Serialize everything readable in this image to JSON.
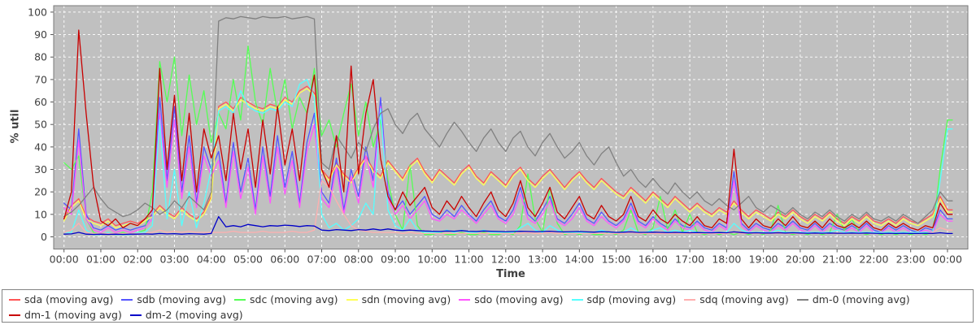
{
  "chart_data": {
    "type": "line",
    "xlabel": "Time",
    "ylabel": "% util",
    "ylim": [
      0,
      100
    ],
    "y_ticks": [
      0,
      10,
      20,
      30,
      40,
      50,
      60,
      70,
      80,
      90,
      100
    ],
    "x_tick_labels": [
      "00:00",
      "01:00",
      "02:00",
      "03:00",
      "04:00",
      "05:00",
      "06:00",
      "07:00",
      "08:00",
      "09:00",
      "10:00",
      "11:00",
      "12:00",
      "13:00",
      "14:00",
      "15:00",
      "16:00",
      "17:00",
      "18:00",
      "19:00",
      "20:00",
      "21:00",
      "22:00",
      "23:00",
      "00:00"
    ],
    "x_start_hour": 0,
    "x_end_hour": 24,
    "x_step_hours": 0.2,
    "grid": true,
    "legend_position": "bottom",
    "colors": {
      "plot_bg": "#c0c0c0",
      "grid": "#ffffff",
      "plot_border": "#7a7a7a",
      "tick_text": "#404040",
      "legend_text": "#333333",
      "legend_border": "#848484"
    },
    "series": [
      {
        "name": "sda (moving avg)",
        "color": "#FF5555",
        "values": [
          8,
          14,
          17,
          9,
          7,
          6,
          8,
          5,
          6,
          7,
          6,
          8,
          10,
          14,
          11,
          9,
          13,
          10,
          8,
          11,
          18,
          58,
          60,
          57,
          62,
          60,
          58,
          57,
          59,
          58,
          62,
          60,
          65,
          67,
          64,
          30,
          26,
          33,
          28,
          25,
          31,
          36,
          30,
          27,
          34,
          30,
          26,
          32,
          35,
          29,
          25,
          30,
          27,
          24,
          29,
          32,
          27,
          24,
          29,
          26,
          23,
          28,
          31,
          26,
          23,
          27,
          30,
          26,
          22,
          26,
          29,
          25,
          22,
          26,
          23,
          20,
          18,
          22,
          19,
          16,
          20,
          17,
          14,
          18,
          15,
          12,
          15,
          12,
          10,
          13,
          11,
          16,
          12,
          9,
          12,
          10,
          8,
          11,
          9,
          12,
          9,
          7,
          10,
          8,
          11,
          8,
          6,
          9,
          7,
          10,
          7,
          6,
          8,
          6,
          9,
          7,
          6,
          8,
          10,
          18,
          12
        ]
      },
      {
        "name": "sdb (moving avg)",
        "color": "#5555FF",
        "values": [
          15,
          12,
          48,
          10,
          4,
          3,
          5,
          3,
          4,
          3,
          4,
          5,
          10,
          62,
          25,
          58,
          20,
          45,
          15,
          40,
          30,
          38,
          15,
          42,
          20,
          35,
          12,
          40,
          18,
          45,
          22,
          38,
          15,
          42,
          55,
          20,
          15,
          35,
          12,
          30,
          18,
          40,
          25,
          62,
          20,
          12,
          16,
          10,
          14,
          18,
          10,
          8,
          12,
          9,
          14,
          10,
          7,
          12,
          16,
          9,
          7,
          12,
          22,
          10,
          7,
          12,
          18,
          8,
          6,
          10,
          15,
          8,
          6,
          11,
          7,
          5,
          8,
          15,
          7,
          5,
          9,
          6,
          4,
          8,
          5,
          4,
          7,
          4,
          3,
          6,
          4,
          29,
          6,
          3,
          6,
          4,
          3,
          6,
          4,
          7,
          4,
          3,
          6,
          3,
          6,
          4,
          3,
          5,
          3,
          6,
          3,
          2,
          5,
          3,
          5,
          3,
          2,
          4,
          3,
          12,
          8
        ]
      },
      {
        "name": "sdc (moving avg)",
        "color": "#55FF55",
        "values": [
          33,
          30,
          36,
          8,
          2,
          1,
          2,
          1,
          2,
          1,
          2,
          3,
          20,
          78,
          60,
          80,
          45,
          72,
          50,
          65,
          42,
          55,
          48,
          70,
          52,
          85,
          60,
          50,
          75,
          55,
          70,
          48,
          62,
          55,
          75,
          45,
          52,
          40,
          55,
          68,
          45,
          60,
          40,
          52,
          25,
          10,
          3,
          32,
          5,
          1,
          1,
          2,
          1,
          1,
          2,
          1,
          1,
          2,
          1,
          1,
          2,
          1,
          5,
          28,
          8,
          2,
          22,
          6,
          1,
          2,
          1,
          2,
          1,
          1,
          2,
          1,
          3,
          12,
          2,
          1,
          4,
          18,
          3,
          12,
          2,
          10,
          2,
          1,
          2,
          1,
          2,
          1,
          2,
          1,
          2,
          1,
          3,
          14,
          2,
          1,
          2,
          1,
          2,
          1,
          2,
          10,
          3,
          8,
          2,
          1,
          2,
          1,
          2,
          1,
          2,
          1,
          2,
          1,
          2,
          30,
          52
        ]
      },
      {
        "name": "sdn (moving avg)",
        "color": "#FFFF55",
        "values": [
          7,
          13,
          16,
          8,
          6,
          5,
          7,
          4,
          5,
          6,
          5,
          7,
          9,
          13,
          10,
          8,
          12,
          9,
          7,
          10,
          17,
          57,
          59,
          56,
          61,
          59,
          57,
          56,
          58,
          57,
          61,
          59,
          64,
          66,
          63,
          29,
          25,
          32,
          27,
          24,
          30,
          35,
          29,
          26,
          33,
          29,
          25,
          31,
          34,
          28,
          24,
          29,
          26,
          23,
          28,
          31,
          26,
          23,
          28,
          25,
          22,
          27,
          30,
          25,
          22,
          26,
          29,
          25,
          21,
          25,
          28,
          24,
          21,
          25,
          22,
          19,
          17,
          21,
          18,
          15,
          19,
          16,
          13,
          17,
          14,
          11,
          14,
          11,
          9,
          12,
          10,
          15,
          11,
          8,
          11,
          9,
          7,
          10,
          8,
          11,
          8,
          6,
          9,
          7,
          10,
          7,
          5,
          8,
          6,
          9,
          6,
          5,
          7,
          5,
          8,
          6,
          5,
          7,
          9,
          17,
          11
        ]
      },
      {
        "name": "sdo (moving avg)",
        "color": "#FF55FF",
        "values": [
          13,
          10,
          43,
          8,
          3,
          2,
          4,
          2,
          3,
          2,
          3,
          4,
          8,
          55,
          22,
          52,
          17,
          40,
          13,
          36,
          27,
          34,
          13,
          38,
          17,
          31,
          10,
          36,
          15,
          40,
          19,
          34,
          13,
          38,
          50,
          17,
          13,
          31,
          10,
          27,
          15,
          36,
          22,
          58,
          17,
          10,
          14,
          8,
          12,
          16,
          8,
          7,
          10,
          8,
          12,
          9,
          6,
          10,
          14,
          8,
          6,
          10,
          19,
          8,
          6,
          10,
          16,
          7,
          5,
          8,
          13,
          7,
          5,
          9,
          6,
          4,
          7,
          13,
          6,
          4,
          8,
          5,
          3,
          7,
          4,
          3,
          6,
          3,
          2,
          5,
          3,
          25,
          5,
          2,
          5,
          3,
          2,
          5,
          3,
          6,
          3,
          2,
          5,
          2,
          5,
          3,
          2,
          4,
          2,
          5,
          2,
          2,
          4,
          2,
          4,
          2,
          2,
          3,
          2,
          10,
          7
        ]
      },
      {
        "name": "sdp (moving avg)",
        "color": "#55FFFF",
        "values": [
          2,
          2,
          12,
          3,
          1,
          1,
          2,
          1,
          1,
          1,
          2,
          2,
          5,
          52,
          8,
          30,
          5,
          20,
          4,
          15,
          30,
          56,
          58,
          55,
          65,
          58,
          56,
          55,
          57,
          56,
          60,
          58,
          68,
          70,
          62,
          10,
          4,
          6,
          3,
          5,
          8,
          15,
          10,
          57,
          12,
          5,
          3,
          8,
          3,
          2,
          2,
          2,
          3,
          2,
          3,
          2,
          2,
          3,
          2,
          2,
          2,
          2,
          4,
          6,
          3,
          2,
          5,
          3,
          2,
          2,
          2,
          2,
          2,
          3,
          2,
          2,
          2,
          4,
          2,
          2,
          3,
          4,
          2,
          3,
          2,
          3,
          2,
          2,
          2,
          2,
          2,
          6,
          3,
          2,
          2,
          2,
          2,
          3,
          2,
          2,
          2,
          2,
          2,
          2,
          2,
          3,
          2,
          2,
          2,
          2,
          2,
          2,
          2,
          2,
          2,
          2,
          2,
          2,
          2,
          25,
          48
        ]
      },
      {
        "name": "sdq (moving avg)",
        "color": "#FFAFAF",
        "values": [
          2,
          3,
          6,
          2,
          1.5,
          1.5,
          1.5,
          1.5,
          1.5,
          1.5,
          1.5,
          1.5,
          2,
          3,
          2,
          2.5,
          2,
          2.5,
          2,
          2,
          2,
          2,
          2,
          2.5,
          2,
          2,
          2,
          2.5,
          2,
          2,
          2,
          2.5,
          2,
          2,
          3,
          25,
          22,
          16,
          10,
          5,
          3,
          2.5,
          2,
          2,
          2,
          2,
          1.5,
          2,
          1.5,
          1.5,
          1.5,
          1.5,
          1.5,
          1.5,
          1.5,
          1.5,
          1.5,
          1.5,
          1.5,
          1.5,
          1.5,
          1.5,
          1.5,
          2,
          1.5,
          1.5,
          2,
          1.5,
          1.5,
          1.5,
          1.5,
          1.5,
          1.5,
          1.5,
          1.5,
          1.5,
          1.5,
          2,
          1.5,
          1.5,
          1.5,
          1.5,
          1.5,
          1.5,
          1.5,
          1.5,
          1.5,
          1.5,
          1.5,
          1.5,
          1.5,
          2,
          1.5,
          1.5,
          1.5,
          1.5,
          1.5,
          1.5,
          1.5,
          1.5,
          1.5,
          1.5,
          1.5,
          1.5,
          1.5,
          1.5,
          1.5,
          1.5,
          1.5,
          1.5,
          1.5,
          1.5,
          1.5,
          1.5,
          1.5,
          1.5,
          1.5,
          1.5,
          2,
          4,
          3
        ]
      },
      {
        "name": "dm-0 (moving avg)",
        "color": "#808080",
        "values": [
          9,
          11,
          14,
          18,
          22,
          17,
          13,
          11,
          9,
          10,
          12,
          15,
          13,
          10,
          12,
          16,
          13,
          18,
          15,
          12,
          20,
          96,
          97.5,
          97,
          98,
          97.5,
          97,
          98,
          97.5,
          97.5,
          98,
          97,
          97.5,
          98,
          97,
          33,
          30,
          45,
          40,
          35,
          42,
          38,
          48,
          55,
          57,
          50,
          46,
          52,
          55,
          48,
          44,
          40,
          46,
          51,
          47,
          42,
          38,
          44,
          48,
          42,
          38,
          44,
          47,
          40,
          36,
          42,
          46,
          40,
          35,
          38,
          42,
          36,
          32,
          37,
          40,
          33,
          27,
          30,
          25,
          22,
          26,
          22,
          19,
          24,
          20,
          17,
          20,
          16,
          14,
          17,
          14,
          12,
          15,
          18,
          13,
          11,
          14,
          12,
          10,
          13,
          10,
          8,
          11,
          9,
          12,
          9,
          7,
          10,
          8,
          11,
          8,
          7,
          9,
          7,
          10,
          8,
          6,
          9,
          12,
          20,
          16
        ]
      },
      {
        "name": "dm-1 (moving avg)",
        "color": "#C80000",
        "values": [
          8,
          20,
          92,
          55,
          23,
          7,
          5,
          8,
          4,
          6,
          5,
          8,
          12,
          75,
          30,
          63,
          25,
          55,
          20,
          48,
          35,
          45,
          25,
          55,
          30,
          48,
          22,
          52,
          28,
          58,
          32,
          48,
          25,
          55,
          72,
          30,
          22,
          45,
          20,
          76,
          28,
          55,
          70,
          35,
          18,
          12,
          20,
          14,
          18,
          22,
          13,
          10,
          16,
          12,
          18,
          13,
          9,
          15,
          20,
          12,
          9,
          15,
          25,
          13,
          9,
          15,
          22,
          11,
          8,
          13,
          18,
          10,
          8,
          14,
          9,
          7,
          10,
          18,
          9,
          7,
          12,
          8,
          6,
          10,
          7,
          5,
          9,
          5,
          4,
          8,
          6,
          39,
          8,
          4,
          8,
          5,
          4,
          8,
          5,
          9,
          5,
          4,
          7,
          4,
          8,
          5,
          4,
          6,
          4,
          7,
          4,
          3,
          6,
          4,
          6,
          4,
          3,
          5,
          4,
          15,
          10
        ]
      },
      {
        "name": "dm-2 (moving avg)",
        "color": "#0000C8",
        "values": [
          1.2,
          1.3,
          2,
          1.2,
          1.1,
          1.2,
          1.1,
          1.2,
          1.1,
          1.2,
          1.2,
          1.3,
          1.2,
          1.5,
          1.3,
          1.4,
          1.2,
          1.4,
          1.3,
          1.2,
          1.5,
          9,
          4.5,
          5,
          4.5,
          5.5,
          5,
          4.5,
          5,
          4.8,
          5.2,
          5,
          4.6,
          5,
          4.8,
          3,
          2.8,
          3.2,
          3,
          2.8,
          3.2,
          3,
          3.5,
          3,
          3.5,
          3,
          2.8,
          3,
          2.8,
          2.6,
          2.5,
          2.4,
          2.6,
          2.5,
          2.8,
          2.5,
          2.4,
          2.6,
          2.5,
          2.4,
          2.3,
          2.4,
          2.5,
          2.4,
          2.3,
          2.4,
          2.5,
          2.3,
          2.2,
          2.3,
          2.4,
          2.2,
          2.1,
          2.3,
          2.2,
          2,
          2.1,
          2.2,
          2,
          2,
          2.1,
          2,
          1.9,
          2,
          1.9,
          1.8,
          1.9,
          1.8,
          1.8,
          1.9,
          1.8,
          2.2,
          1.9,
          1.7,
          1.8,
          1.7,
          1.7,
          1.8,
          1.7,
          1.8,
          1.7,
          1.6,
          1.7,
          1.6,
          1.7,
          1.6,
          1.6,
          1.7,
          1.6,
          1.7,
          1.6,
          1.5,
          1.6,
          1.5,
          1.6,
          1.5,
          1.5,
          1.6,
          1.5,
          1.8,
          1.5
        ]
      }
    ]
  }
}
